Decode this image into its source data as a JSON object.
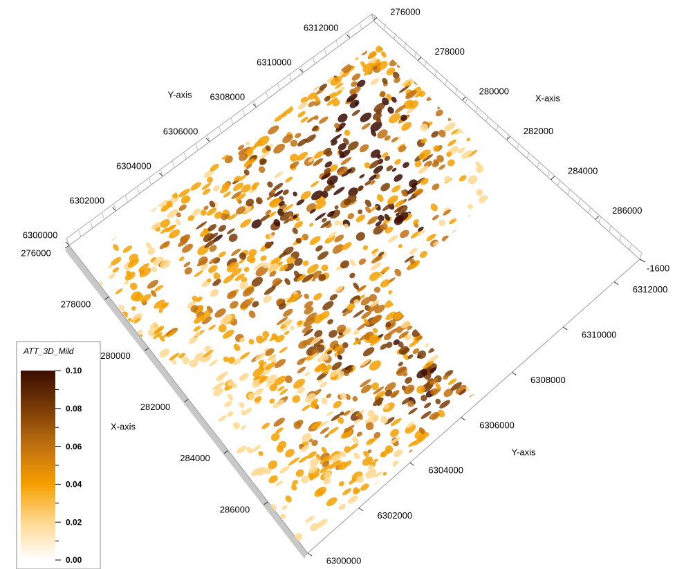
{
  "chart_data": {
    "type": "surface3d",
    "x_axis_label": "X-axis",
    "y_axis_label": "Y-axis",
    "xlim": [
      276000,
      288000
    ],
    "xticks": [
      276000,
      278000,
      280000,
      282000,
      284000,
      286000
    ],
    "ylim": [
      6300000,
      6313000
    ],
    "yticks": [
      6300000,
      6302000,
      6304000,
      6306000,
      6308000,
      6310000,
      6312000
    ],
    "zticks": [
      -1600
    ],
    "colorbar": {
      "title": "ATT_3D_Mild",
      "lim": [
        0,
        0.1
      ],
      "colors": [
        "#ffffff",
        "#ffd890",
        "#f5a000",
        "#c07010",
        "#7a3c05",
        "#3a0c02"
      ],
      "ticks": [
        {
          "value": 0,
          "label": "0.00"
        },
        {
          "value": 0.02,
          "label": "0.02"
        },
        {
          "value": 0.04,
          "label": "0.04"
        },
        {
          "value": 0.06,
          "label": "0.06"
        },
        {
          "value": 0.08,
          "label": "0.08"
        },
        {
          "value": 0.1,
          "label": "0.10"
        }
      ]
    }
  }
}
